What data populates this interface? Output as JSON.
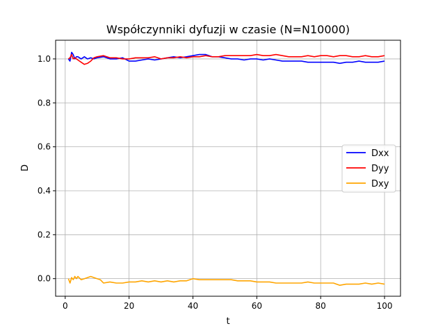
{
  "chart_data": {
    "type": "line",
    "title": "Współczynniki dyfuzji w czasie (N=N10000)",
    "xlabel": "t",
    "ylabel": "D",
    "xlim": [
      -3,
      105
    ],
    "ylim": [
      -0.08,
      1.085
    ],
    "xticks": [
      0,
      20,
      40,
      60,
      80,
      100
    ],
    "yticks": [
      0.0,
      0.2,
      0.4,
      0.6,
      0.8,
      1.0
    ],
    "xtick_labels": [
      "0",
      "20",
      "40",
      "60",
      "80",
      "100"
    ],
    "ytick_labels": [
      "0.0",
      "0.2",
      "0.4",
      "0.6",
      "0.8",
      "1.0"
    ],
    "grid": true,
    "legend_position": "center-right",
    "series": [
      {
        "name": "Dxx",
        "color": "#0000ff",
        "x": [
          1,
          1.5,
          2,
          2.5,
          3,
          3.5,
          4,
          5,
          6,
          7,
          8,
          9,
          10,
          12,
          14,
          16,
          18,
          20,
          22,
          24,
          26,
          28,
          30,
          32,
          34,
          36,
          38,
          40,
          42,
          44,
          46,
          48,
          50,
          52,
          54,
          56,
          58,
          60,
          62,
          64,
          66,
          68,
          70,
          72,
          74,
          76,
          78,
          80,
          82,
          84,
          86,
          88,
          90,
          92,
          94,
          96,
          98,
          100
        ],
        "y": [
          1.0,
          0.99,
          1.03,
          1.02,
          1.0,
          1.01,
          1.01,
          1.0,
          1.01,
          1.0,
          1.005,
          1.0,
          1.005,
          1.01,
          1.0,
          1.0,
          1.005,
          0.99,
          0.99,
          0.995,
          1.0,
          0.995,
          1.0,
          1.005,
          1.01,
          1.005,
          1.01,
          1.015,
          1.02,
          1.02,
          1.01,
          1.01,
          1.005,
          1.0,
          1.0,
          0.995,
          1.0,
          1.0,
          0.995,
          1.0,
          0.995,
          0.99,
          0.99,
          0.99,
          0.99,
          0.985,
          0.985,
          0.985,
          0.985,
          0.985,
          0.98,
          0.985,
          0.985,
          0.99,
          0.985,
          0.985,
          0.985,
          0.99
        ]
      },
      {
        "name": "Dyy",
        "color": "#ff0000",
        "x": [
          1,
          1.5,
          2,
          2.5,
          3,
          4,
          5,
          6,
          7,
          8,
          9,
          10,
          12,
          14,
          16,
          18,
          20,
          22,
          24,
          26,
          28,
          30,
          32,
          34,
          36,
          38,
          40,
          42,
          44,
          46,
          48,
          50,
          52,
          54,
          56,
          58,
          60,
          62,
          64,
          66,
          68,
          70,
          72,
          74,
          76,
          78,
          80,
          82,
          84,
          86,
          88,
          90,
          92,
          94,
          96,
          98,
          100
        ],
        "y": [
          1.0,
          1.005,
          1.02,
          1.0,
          1.005,
          0.995,
          0.985,
          0.975,
          0.98,
          0.99,
          1.005,
          1.01,
          1.015,
          1.005,
          1.005,
          1.0,
          1.0,
          1.005,
          1.005,
          1.005,
          1.01,
          1.0,
          1.005,
          1.005,
          1.01,
          1.005,
          1.01,
          1.01,
          1.015,
          1.01,
          1.01,
          1.015,
          1.015,
          1.015,
          1.015,
          1.015,
          1.02,
          1.015,
          1.015,
          1.02,
          1.015,
          1.01,
          1.01,
          1.01,
          1.015,
          1.01,
          1.015,
          1.015,
          1.01,
          1.015,
          1.015,
          1.01,
          1.01,
          1.015,
          1.01,
          1.01,
          1.015
        ]
      },
      {
        "name": "Dxy",
        "color": "#ffa500",
        "x": [
          1,
          1.5,
          2,
          2.5,
          3,
          3.5,
          4,
          5,
          6,
          7,
          8,
          9,
          10,
          11,
          12,
          14,
          16,
          18,
          20,
          22,
          24,
          26,
          28,
          30,
          32,
          34,
          36,
          38,
          40,
          42,
          44,
          46,
          48,
          50,
          52,
          54,
          56,
          58,
          60,
          62,
          64,
          66,
          68,
          70,
          72,
          74,
          76,
          78,
          80,
          82,
          84,
          86,
          88,
          90,
          92,
          94,
          96,
          98,
          100
        ],
        "y": [
          0.0,
          -0.02,
          0.005,
          -0.005,
          0.01,
          0.0,
          0.01,
          -0.005,
          0.0,
          0.005,
          0.01,
          0.005,
          0.0,
          -0.005,
          -0.02,
          -0.015,
          -0.02,
          -0.02,
          -0.015,
          -0.015,
          -0.01,
          -0.015,
          -0.01,
          -0.015,
          -0.01,
          -0.015,
          -0.01,
          -0.01,
          0.0,
          -0.005,
          -0.005,
          -0.005,
          -0.005,
          -0.005,
          -0.005,
          -0.01,
          -0.01,
          -0.01,
          -0.015,
          -0.015,
          -0.015,
          -0.02,
          -0.02,
          -0.02,
          -0.02,
          -0.02,
          -0.015,
          -0.02,
          -0.02,
          -0.02,
          -0.02,
          -0.03,
          -0.025,
          -0.025,
          -0.025,
          -0.02,
          -0.025,
          -0.02,
          -0.025
        ]
      }
    ]
  }
}
